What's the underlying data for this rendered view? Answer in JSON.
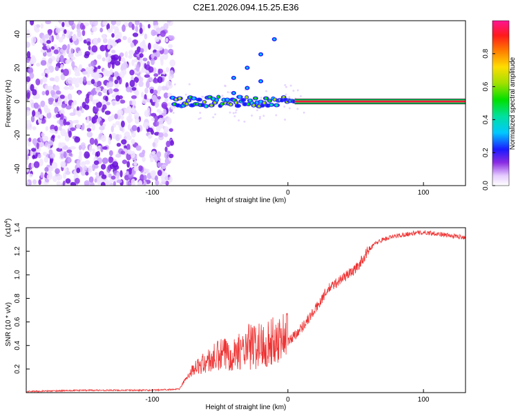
{
  "chart_data": [
    {
      "type": "heatmap",
      "title": "C2E1.2026.094.15.25.E36",
      "xlabel": "Height of straight line (km)",
      "ylabel": "Frequency (Hz)",
      "xlim": [
        -193,
        131
      ],
      "ylim": [
        -50,
        48
      ],
      "xticks": [
        -100,
        0,
        100
      ],
      "yticks": [
        -40,
        -20,
        0,
        20,
        40
      ],
      "colorbar": {
        "label": "Normalized spectral amplitude",
        "range": [
          0,
          1
        ],
        "ticks": [
          0.0,
          0.2,
          0.4,
          0.6,
          0.8
        ]
      },
      "features": {
        "noise_region_x": [
          -193,
          -85
        ],
        "carrier_frequency": 0,
        "carrier_start_x": 5,
        "sidebands": [
          {
            "x": [
              -40,
              -30,
              -20,
              -10
            ],
            "y": [
              14,
              20,
              28,
              37
            ]
          },
          {
            "x": [
              -40,
              -30,
              -20
            ],
            "y": [
              5,
              8,
              12
            ]
          }
        ]
      }
    },
    {
      "type": "line",
      "xlabel": "Height of straight line (km)",
      "ylabel": "SNR (10 * v/v)",
      "y_multiplier": "(x10",
      "y_multiplier_exp": "4",
      "xlim": [
        -193,
        131
      ],
      "ylim": [
        0,
        1.4
      ],
      "xticks": [
        -100,
        0,
        100
      ],
      "yticks": [
        0.2,
        0.4,
        0.6,
        0.8,
        1.0,
        1.2,
        1.4
      ],
      "series": [
        {
          "color": "#ee3333",
          "x": [
            -193,
            -150,
            -100,
            -80,
            -76,
            -70,
            -60,
            -50,
            -40,
            -30,
            -20,
            -10,
            0,
            10,
            20,
            25,
            30,
            40,
            50,
            55,
            60,
            65,
            70,
            80,
            90,
            100,
            110,
            120,
            131
          ],
          "y": [
            0.01,
            0.02,
            0.02,
            0.03,
            0.1,
            0.18,
            0.22,
            0.25,
            0.28,
            0.3,
            0.32,
            0.35,
            0.43,
            0.55,
            0.7,
            0.8,
            0.88,
            0.97,
            1.05,
            1.13,
            1.22,
            1.27,
            1.3,
            1.33,
            1.35,
            1.36,
            1.35,
            1.33,
            1.32
          ]
        }
      ]
    }
  ]
}
